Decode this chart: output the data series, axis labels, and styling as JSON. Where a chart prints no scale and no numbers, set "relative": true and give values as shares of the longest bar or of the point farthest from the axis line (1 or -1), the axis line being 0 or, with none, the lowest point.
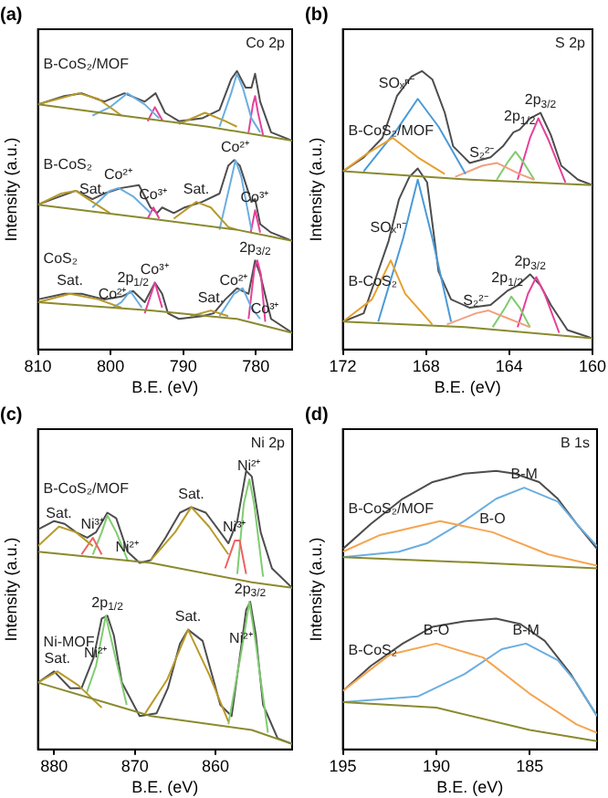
{
  "chart_data": [
    {
      "type": "line",
      "title": "(a)",
      "xlabel": "B.E. (eV)",
      "ylabel": "Intensity (a.u.)",
      "relative": true,
      "xlim": [
        810,
        775
      ],
      "xticks": [
        810,
        800,
        790,
        780
      ],
      "marker": "none",
      "series": [
        {
          "color": "#8a8a2e",
          "x": [
            810,
            798.5,
            786.6,
            775
          ],
          "values": [
            0.88,
            0.84,
            0.8,
            0.75
          ]
        },
        {
          "color": "#b89a2a",
          "x": [
            810,
            807.2,
            804.4,
            801.7,
            798.5
          ],
          "values": [
            0.88,
            0.9,
            0.92,
            0.9,
            0.84
          ]
        },
        {
          "color": "#6aaee0",
          "x": [
            802.5,
            800.1,
            797.7,
            795.3,
            793.3
          ],
          "values": [
            0.84,
            0.87,
            0.92,
            0.88,
            0.83
          ]
        },
        {
          "color": "#e6409a",
          "x": [
            794.9,
            793.9,
            792.8
          ],
          "values": [
            0.82,
            0.87,
            0.82
          ]
        },
        {
          "color": "#b89a2a",
          "x": [
            790.6,
            787,
            784.2,
            782.6
          ],
          "values": [
            0.81,
            0.85,
            0.82,
            0.8
          ]
        },
        {
          "color": "#6aaee0",
          "x": [
            785,
            783.4,
            782.6,
            781.8,
            780.6,
            779.4
          ],
          "values": [
            0.8,
            0.92,
            0.99,
            0.94,
            0.83,
            0.78
          ]
        },
        {
          "color": "#e6409a",
          "x": [
            781,
            780.4,
            780.1,
            779.7,
            779
          ],
          "values": [
            0.78,
            0.88,
            0.91,
            0.85,
            0.77
          ]
        },
        {
          "color": "#4d4d4d",
          "x": [
            810,
            806.4,
            804,
            800.9,
            798.1,
            795.3,
            793.8,
            792.5,
            790.6,
            787.4,
            785,
            783.4,
            782.6,
            781.4,
            780.6,
            780.1,
            779.4,
            777.9,
            775
          ],
          "values": [
            0.88,
            0.91,
            0.92,
            0.89,
            0.92,
            0.89,
            0.92,
            0.85,
            0.82,
            0.83,
            0.86,
            0.97,
            1,
            0.94,
            0.94,
            0.99,
            0.89,
            0.78,
            0.75
          ]
        },
        {
          "color": "#8a8a2e",
          "x": [
            810,
            794.5,
            782.6,
            775
          ],
          "values": [
            0.52,
            0.47,
            0.43,
            0.39
          ]
        },
        {
          "color": "#b89a2a",
          "x": [
            810,
            806.8,
            804.8,
            802.5,
            800.1
          ],
          "values": [
            0.52,
            0.56,
            0.57,
            0.53,
            0.49
          ]
        },
        {
          "color": "#6aaee0",
          "x": [
            802.5,
            800.1,
            798.9,
            796.9,
            794.5
          ],
          "values": [
            0.51,
            0.57,
            0.58,
            0.55,
            0.49
          ]
        },
        {
          "color": "#e6409a",
          "x": [
            794.9,
            794.1,
            793.3
          ],
          "values": [
            0.47,
            0.51,
            0.47
          ]
        },
        {
          "color": "#b89a2a",
          "x": [
            791.3,
            788.2,
            786.2,
            783.8,
            782.6
          ],
          "values": [
            0.47,
            0.53,
            0.51,
            0.44,
            0.43
          ]
        },
        {
          "color": "#6aaee0",
          "x": [
            785,
            783.4,
            782.8,
            782,
            780.6
          ],
          "values": [
            0.43,
            0.61,
            0.68,
            0.62,
            0.43
          ]
        },
        {
          "color": "#e6409a",
          "x": [
            780.7,
            780.1,
            779.4
          ],
          "values": [
            0.42,
            0.5,
            0.42
          ]
        },
        {
          "color": "#4d4d4d",
          "x": [
            810,
            808,
            804.8,
            802.5,
            800.9,
            798.5,
            796.1,
            794.5,
            793.6,
            792.9,
            791.3,
            789.8,
            787.4,
            785,
            783.8,
            783,
            782.2,
            781.7,
            780.6,
            780.1,
            779.4,
            777.9,
            775
          ],
          "values": [
            0.52,
            0.54,
            0.57,
            0.54,
            0.56,
            0.58,
            0.59,
            0.51,
            0.49,
            0.51,
            0.49,
            0.51,
            0.53,
            0.56,
            0.66,
            0.68,
            0.66,
            0.62,
            0.53,
            0.54,
            0.45,
            0.42,
            0.39
          ]
        },
        {
          "color": "#8a8a2e",
          "x": [
            810,
            794.5,
            782.6,
            775
          ],
          "values": [
            0.17,
            0.14,
            0.11,
            0.06
          ]
        },
        {
          "color": "#b89a2a",
          "x": [
            810,
            805.6,
            801.7,
            798.5
          ],
          "values": [
            0.17,
            0.2,
            0.18,
            0.15
          ]
        },
        {
          "color": "#6aaee0",
          "x": [
            799.7,
            798.5,
            797.3,
            795.7
          ],
          "values": [
            0.15,
            0.17,
            0.21,
            0.15
          ]
        },
        {
          "color": "#e6409a",
          "x": [
            795.3,
            793.9,
            792.9
          ],
          "values": [
            0.13,
            0.24,
            0.15
          ]
        },
        {
          "color": "#b89a2a",
          "x": [
            789,
            786.2,
            783.8
          ],
          "values": [
            0.12,
            0.14,
            0.12
          ]
        },
        {
          "color": "#6aaee0",
          "x": [
            785,
            783,
            781.8,
            780.6,
            779.4
          ],
          "values": [
            0.12,
            0.2,
            0.22,
            0.15,
            0.11
          ]
        },
        {
          "color": "#e6409a",
          "x": [
            781,
            780.2,
            779.8,
            779.3,
            778.7
          ],
          "values": [
            0.11,
            0.29,
            0.32,
            0.27,
            0.1
          ]
        },
        {
          "color": "#4d4d4d",
          "x": [
            810,
            806.4,
            804,
            800.9,
            798.5,
            796.9,
            795.3,
            793.9,
            792.9,
            792.1,
            790.6,
            787.4,
            785.8,
            784.2,
            782.6,
            781.8,
            781,
            780.1,
            779.4,
            777.9,
            775
          ],
          "values": [
            0.18,
            0.2,
            0.2,
            0.18,
            0.19,
            0.21,
            0.17,
            0.24,
            0.2,
            0.13,
            0.11,
            0.12,
            0.13,
            0.18,
            0.22,
            0.21,
            0.2,
            0.32,
            0.27,
            0.11,
            0.06
          ]
        }
      ],
      "annotations": [
        {
          "text": "B-CoS₂/MOF",
          "x": 810,
          "y": 0.88
        },
        "Co 2p",
        {
          "text": "B-CoS₂",
          "x": 810,
          "y": 0.52
        },
        {
          "text": "Co²⁺",
          "x": 798.9,
          "y": 0.58
        },
        {
          "text": "Co³⁺",
          "x": 794.1,
          "y": 0.51
        },
        {
          "text": "Sat.",
          "x": 802.5,
          "y": 0.53
        },
        {
          "text": "Sat.",
          "x": 788.2,
          "y": 0.53
        },
        {
          "text": "Co²⁺",
          "x": 782.8,
          "y": 0.68
        },
        {
          "text": "Co³⁺",
          "x": 780.1,
          "y": 0.5
        },
        {
          "text": "CoS₂",
          "x": 810,
          "y": 0.18
        },
        {
          "text": "2p$_{1/2}$",
          "x": 796.9,
          "y": 0.21
        },
        {
          "text": "Co³⁺",
          "x": 793.9,
          "y": 0.24
        },
        {
          "text": "Co²⁺",
          "x": 799.7,
          "y": 0.15
        },
        {
          "text": "Sat.",
          "x": 805.6,
          "y": 0.2
        },
        {
          "text": "2p$_{3/2}$",
          "x": 780.1,
          "y": 0.32
        },
        {
          "text": "Co²⁺",
          "x": 783,
          "y": 0.2
        },
        {
          "text": "Sat.",
          "x": 786.2,
          "y": 0.14
        },
        {
          "text": "Co³⁺",
          "x": 778.7,
          "y": 0.1
        }
      ]
    },
    {
      "type": "line",
      "title": "(b)",
      "xlabel": "B.E. (eV)",
      "ylabel": "Intensity (a.u.)",
      "relative": true,
      "xlim": [
        172,
        160
      ],
      "xticks": [
        172,
        168,
        164,
        160
      ],
      "marker": "none",
      "series": [
        {
          "color": "#8a8a2e",
          "x": [
            172,
            165.9,
            160
          ],
          "values": [
            0.64,
            0.61,
            0.59
          ]
        },
        {
          "color": "#e8a030",
          "x": [
            172,
            170.9,
            169.6,
            168.4,
            167.1
          ],
          "values": [
            0.64,
            0.7,
            0.76,
            0.69,
            0.63
          ]
        },
        {
          "color": "#4a9ad8",
          "x": [
            171,
            169.4,
            168.4,
            167.4,
            166.1
          ],
          "values": [
            0.64,
            0.79,
            0.9,
            0.8,
            0.63
          ]
        },
        {
          "color": "#f0a080",
          "x": [
            166.6,
            165.3,
            164.6,
            163.5,
            162.8
          ],
          "values": [
            0.62,
            0.66,
            0.67,
            0.63,
            0.61
          ]
        },
        {
          "color": "#80cc70",
          "x": [
            164.6,
            164.1,
            163.7,
            163.3,
            162.8
          ],
          "values": [
            0.61,
            0.67,
            0.71,
            0.67,
            0.61
          ]
        },
        {
          "color": "#e6409a",
          "x": [
            163.6,
            163,
            162.6,
            162.1,
            161.3
          ],
          "values": [
            0.61,
            0.76,
            0.83,
            0.75,
            0.6
          ]
        },
        {
          "color": "#4d4d4d",
          "x": [
            172,
            171,
            170.1,
            169.4,
            168.7,
            168.2,
            167.7,
            167.1,
            166.7,
            165.9,
            164.9,
            164.3,
            163.8,
            163.5,
            163,
            162.5,
            162,
            161.5,
            160.7,
            160
          ],
          "values": [
            0.64,
            0.69,
            0.76,
            0.91,
            0.98,
            1,
            0.97,
            0.85,
            0.73,
            0.67,
            0.69,
            0.73,
            0.78,
            0.79,
            0.83,
            0.85,
            0.77,
            0.66,
            0.61,
            0.59
          ]
        },
        {
          "color": "#8a8a2e",
          "x": [
            172,
            166,
            160
          ],
          "values": [
            0.1,
            0.08,
            0.04
          ]
        },
        {
          "color": "#e8a030",
          "x": [
            172,
            170.6,
            169.7,
            169,
            167.7
          ],
          "values": [
            0.1,
            0.18,
            0.32,
            0.2,
            0.09
          ]
        },
        {
          "color": "#4a9ad8",
          "x": [
            170.3,
            169.1,
            168.4,
            167.7,
            166.8
          ],
          "values": [
            0.1,
            0.4,
            0.61,
            0.4,
            0.1
          ]
        },
        {
          "color": "#f0a080",
          "x": [
            167,
            165.6,
            165,
            164,
            163
          ],
          "values": [
            0.09,
            0.13,
            0.14,
            0.11,
            0.08
          ]
        },
        {
          "color": "#80cc70",
          "x": [
            164.8,
            164.2,
            163.9,
            163.5,
            163
          ],
          "values": [
            0.08,
            0.15,
            0.19,
            0.15,
            0.08
          ]
        },
        {
          "color": "#e6409a",
          "x": [
            163.6,
            163.1,
            162.7,
            162.3,
            161.6
          ],
          "values": [
            0.08,
            0.2,
            0.26,
            0.2,
            0.06
          ]
        },
        {
          "color": "#4d4d4d",
          "x": [
            172,
            171,
            170.4,
            169.8,
            169.3,
            168.8,
            168.4,
            167.95,
            167.4,
            166.8,
            165.9,
            164.9,
            164.1,
            163.6,
            163,
            162.5,
            162,
            161.2,
            160
          ],
          "values": [
            0.1,
            0.13,
            0.26,
            0.39,
            0.54,
            0.62,
            0.65,
            0.6,
            0.28,
            0.18,
            0.15,
            0.16,
            0.21,
            0.23,
            0.27,
            0.23,
            0.16,
            0.07,
            0.04
          ]
        }
      ],
      "annotations": [
        {
          "text": "B-CoS₂/MOF",
          "x": 172,
          "y": 0.64
        },
        "S 2p",
        {
          "text": "SOₓⁿ⁻",
          "x": 169.4,
          "y": 0.91
        },
        {
          "text": "S₂²⁻",
          "x": 165.3,
          "y": 0.66
        },
        {
          "text": "2p$_{1/2}$",
          "x": 163.5,
          "y": 0.79
        },
        {
          "text": "2p$_{3/2}$",
          "x": 162.5,
          "y": 0.85
        },
        {
          "text": "B-CoS₂",
          "x": 172,
          "y": 0.1
        },
        {
          "text": "SOₓⁿ⁻",
          "x": 169.8,
          "y": 0.39
        },
        {
          "text": "S₂²⁻",
          "x": 165.6,
          "y": 0.13
        },
        {
          "text": "2p$_{1/2}$",
          "x": 164.1,
          "y": 0.21
        },
        {
          "text": "2p$_{3/2}$",
          "x": 163,
          "y": 0.27
        }
      ]
    },
    {
      "type": "line",
      "title": "(c)",
      "xlabel": "B.E. (eV)",
      "ylabel": "Intensity (a.u.)",
      "relative": true,
      "xlim": [
        882,
        850.5
      ],
      "xticks": [
        880,
        870,
        860
      ],
      "marker": "none",
      "series": [
        {
          "color": "#8a8a2e",
          "x": [
            882,
            868,
            855.5,
            850.5
          ],
          "values": [
            0.71,
            0.67,
            0.6,
            0.58
          ]
        },
        {
          "color": "#b89a2a",
          "x": [
            882,
            879.4,
            877.3,
            875.2
          ],
          "values": [
            0.73,
            0.8,
            0.78,
            0.73
          ]
        },
        {
          "color": "#f06060",
          "x": [
            876.6,
            875.2,
            874.1
          ],
          "values": [
            0.7,
            0.76,
            0.7
          ]
        },
        {
          "color": "#80cc70",
          "x": [
            875.2,
            874.1,
            873.4,
            872.3,
            870.9
          ],
          "values": [
            0.7,
            0.78,
            0.84,
            0.78,
            0.68
          ]
        },
        {
          "color": "#b89a2a",
          "x": [
            868,
            865,
            863,
            860.8,
            858.4
          ],
          "values": [
            0.68,
            0.78,
            0.87,
            0.8,
            0.7
          ]
        },
        {
          "color": "#f06060",
          "x": [
            858.8,
            857.6,
            857,
            856.2
          ],
          "values": [
            0.65,
            0.75,
            0.75,
            0.63
          ]
        },
        {
          "color": "#80cc70",
          "x": [
            857.3,
            856.5,
            855.8,
            855.2,
            854.1
          ],
          "values": [
            0.63,
            0.88,
            0.97,
            0.88,
            0.62
          ]
        },
        {
          "color": "#4d4d4d",
          "x": [
            882,
            880,
            878.7,
            877.3,
            875.9,
            874.8,
            873.4,
            872.3,
            870.9,
            869.4,
            868,
            866.2,
            864.4,
            863,
            861.2,
            859.4,
            858.4,
            857.3,
            856.2,
            855.5,
            854.4,
            853,
            850.5
          ],
          "values": [
            0.79,
            0.82,
            0.81,
            0.78,
            0.76,
            0.78,
            0.85,
            0.83,
            0.71,
            0.67,
            0.68,
            0.76,
            0.85,
            0.87,
            0.85,
            0.78,
            0.74,
            0.82,
            1,
            0.98,
            0.78,
            0.65,
            0.58
          ]
        },
        {
          "color": "#8a8a2e",
          "x": [
            882,
            868,
            855.5,
            850.5
          ],
          "values": [
            0.24,
            0.12,
            0.07,
            0.02
          ]
        },
        {
          "color": "#b89a2a",
          "x": [
            882,
            879.6,
            877,
            874.1
          ],
          "values": [
            0.24,
            0.28,
            0.23,
            0.15
          ]
        },
        {
          "color": "#80cc70",
          "x": [
            876,
            874.8,
            873.6,
            872.4,
            871
          ],
          "values": [
            0.2,
            0.3,
            0.48,
            0.33,
            0.16
          ]
        },
        {
          "color": "#b89a2a",
          "x": [
            868.7,
            866,
            863.4,
            860.8,
            858.4
          ],
          "values": [
            0.13,
            0.25,
            0.43,
            0.27,
            0.1
          ]
        },
        {
          "color": "#80cc70",
          "x": [
            858.4,
            856.8,
            855.8,
            855,
            853.5
          ],
          "values": [
            0.09,
            0.35,
            0.53,
            0.38,
            0.06
          ]
        },
        {
          "color": "#4d4d4d",
          "x": [
            882,
            880,
            878,
            876.6,
            875.1,
            874.1,
            873.4,
            872.6,
            871.6,
            869.4,
            867.3,
            865.9,
            864.4,
            863.4,
            861.6,
            859.4,
            858,
            856.9,
            856.2,
            855.7,
            855,
            854.1,
            852.3,
            850.5
          ],
          "values": [
            0.24,
            0.28,
            0.22,
            0.22,
            0.33,
            0.47,
            0.48,
            0.41,
            0.24,
            0.12,
            0.13,
            0.22,
            0.38,
            0.43,
            0.39,
            0.16,
            0.12,
            0.35,
            0.5,
            0.53,
            0.41,
            0.16,
            0.04,
            0.02
          ]
        }
      ],
      "annotations": [
        {
          "text": "B-CoS₂/MOF",
          "x": 882,
          "y": 0.79
        },
        "Ni 2p",
        {
          "text": "Ni³⁺",
          "x": 875.2,
          "y": 0.76
        },
        {
          "text": "Ni²⁺",
          "x": 870.9,
          "y": 0.68
        },
        {
          "text": "Sat.",
          "x": 879.4,
          "y": 0.8
        },
        {
          "text": "Ni³⁺",
          "x": 857.6,
          "y": 0.75
        },
        {
          "text": "Ni²⁺",
          "x": 855.8,
          "y": 0.97
        },
        {
          "text": "Sat.",
          "x": 863,
          "y": 0.87
        },
        {
          "text": "Ni-MOF",
          "x": 882,
          "y": 0.24
        },
        {
          "text": "2p$_{1/2}$",
          "x": 873.4,
          "y": 0.48
        },
        {
          "text": "2p$_{3/2}$",
          "x": 855.7,
          "y": 0.53
        },
        {
          "text": "Sat.",
          "x": 879.6,
          "y": 0.28
        },
        {
          "text": "Ni²⁺",
          "x": 874.8,
          "y": 0.3
        },
        {
          "text": "Sat.",
          "x": 863.4,
          "y": 0.43
        },
        {
          "text": "Ni²⁺",
          "x": 856.8,
          "y": 0.35
        }
      ]
    },
    {
      "type": "line",
      "title": "(d)",
      "xlabel": "B.E. (eV)",
      "ylabel": "Intensity (a.u.)",
      "relative": true,
      "xlim": [
        195,
        181.4
      ],
      "xticks": [
        195,
        190,
        185
      ],
      "marker": "none",
      "series": [
        {
          "color": "#8a8a2e",
          "x": [
            195,
            187.5,
            181.4
          ],
          "values": [
            0.69,
            0.67,
            0.65
          ]
        },
        {
          "color": "#f5a550",
          "x": [
            195,
            193,
            189.8,
            187,
            184,
            181.4
          ],
          "values": [
            0.71,
            0.77,
            0.82,
            0.78,
            0.7,
            0.66
          ]
        },
        {
          "color": "#6aaee0",
          "x": [
            195,
            192,
            190.5,
            188.5,
            186.8,
            185.3,
            183.5,
            182.5,
            181.4
          ],
          "values": [
            0.69,
            0.71,
            0.74,
            0.82,
            0.9,
            0.94,
            0.89,
            0.81,
            0.73
          ]
        },
        {
          "color": "#4d4d4d",
          "x": [
            195,
            193.5,
            191.8,
            190.2,
            188.5,
            186.8,
            185.8,
            184.5,
            183.5,
            182.5,
            181.4
          ],
          "values": [
            0.72,
            0.81,
            0.9,
            0.96,
            0.99,
            1,
            0.99,
            0.96,
            0.9,
            0.81,
            0.72
          ]
        },
        {
          "color": "#8a8a2e",
          "x": [
            195,
            190,
            185,
            181.4
          ],
          "values": [
            0.17,
            0.15,
            0.07,
            0.03
          ]
        },
        {
          "color": "#f5a550",
          "x": [
            195,
            192.5,
            190,
            187.5,
            185,
            182.5,
            181.4
          ],
          "values": [
            0.21,
            0.34,
            0.38,
            0.33,
            0.2,
            0.09,
            0.06
          ]
        },
        {
          "color": "#6aaee0",
          "x": [
            195,
            191,
            188.5,
            186.5,
            185.2,
            183.5,
            182.5,
            181.4
          ],
          "values": [
            0.17,
            0.19,
            0.27,
            0.36,
            0.38,
            0.32,
            0.24,
            0.12
          ]
        },
        {
          "color": "#4d4d4d",
          "x": [
            195,
            193.5,
            191.8,
            190.2,
            188.5,
            186.8,
            185.5,
            184.2,
            182.8,
            181.4
          ],
          "values": [
            0.21,
            0.3,
            0.38,
            0.44,
            0.46,
            0.47,
            0.45,
            0.39,
            0.27,
            0.12
          ]
        }
      ],
      "annotations": [
        {
          "text": "B-CoS₂/MOF",
          "x": 195,
          "y": 0.72
        },
        "B 1s",
        {
          "text": "B-O",
          "x": 187,
          "y": 0.78
        },
        {
          "text": "B-M",
          "x": 185.3,
          "y": 0.94
        },
        {
          "text": "B-CoS₂",
          "x": 195,
          "y": 0.21
        },
        {
          "text": "B-O",
          "x": 190,
          "y": 0.38
        },
        {
          "text": "B-M",
          "x": 185.2,
          "y": 0.38
        }
      ]
    }
  ]
}
